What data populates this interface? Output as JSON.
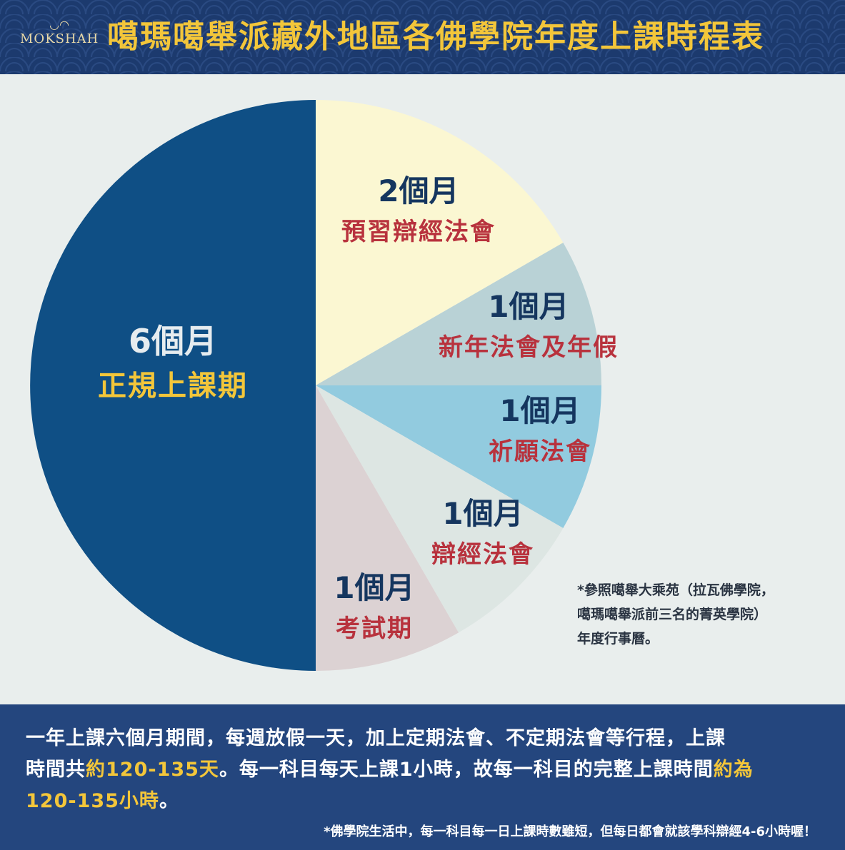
{
  "header": {
    "logo_text": "MOKSHAH",
    "title": "噶瑪噶舉派藏外地區各佛學院年度上課時程表"
  },
  "colors": {
    "header_bg": "#1c3a6e",
    "title": "#f3c63a",
    "bottom_bg": "#24467e"
  },
  "chart_data": {
    "type": "pie",
    "unit": "個月",
    "slices": [
      {
        "value": 6,
        "value_label": "6個月",
        "label": "正規上課期",
        "color": "#0f4f85",
        "value_color": "#e6ecef",
        "label_color": "#f3c63a"
      },
      {
        "value": 2,
        "value_label": "2個月",
        "label": "預習辯經法會",
        "color": "#fbf7d2",
        "value_color": "#15365f",
        "label_color": "#b8323d"
      },
      {
        "value": 1,
        "value_label": "1個月",
        "label": "新年法會及年假",
        "color": "#b9d2d6",
        "value_color": "#15365f",
        "label_color": "#b8323d"
      },
      {
        "value": 1,
        "value_label": "1個月",
        "label": "祈願法會",
        "color": "#92cbdf",
        "value_color": "#15365f",
        "label_color": "#b8323d"
      },
      {
        "value": 1,
        "value_label": "1個月",
        "label": "辯經法會",
        "color": "#dde6e3",
        "value_color": "#15365f",
        "label_color": "#b8323d"
      },
      {
        "value": 1,
        "value_label": "1個月",
        "label": "考試期",
        "color": "#dcd2d3",
        "value_color": "#15365f",
        "label_color": "#b8323d"
      }
    ]
  },
  "reference_note": {
    "lines": [
      "*參照噶舉大乘苑（拉瓦佛學院，",
      "噶瑪噶舉派前三名的菁英學院）",
      "年度行事曆。"
    ]
  },
  "bottom": {
    "line1": "一年上課六個月期間，每週放假一天，加上定期法會、不定期法會等行程，上課",
    "line2_pre": "時間共",
    "line2_hl": "約120-135天",
    "line2_post": "。每一科目每天上課1小時，故每一科目的完整上課時間",
    "line2_hl2": "約為",
    "line3_hl": "120-135小時",
    "line3_post": "。",
    "note": "*佛學院生活中，每一科目每一日上課時數雖短，但每日都會就該學科辯經4-6小時喔！"
  }
}
